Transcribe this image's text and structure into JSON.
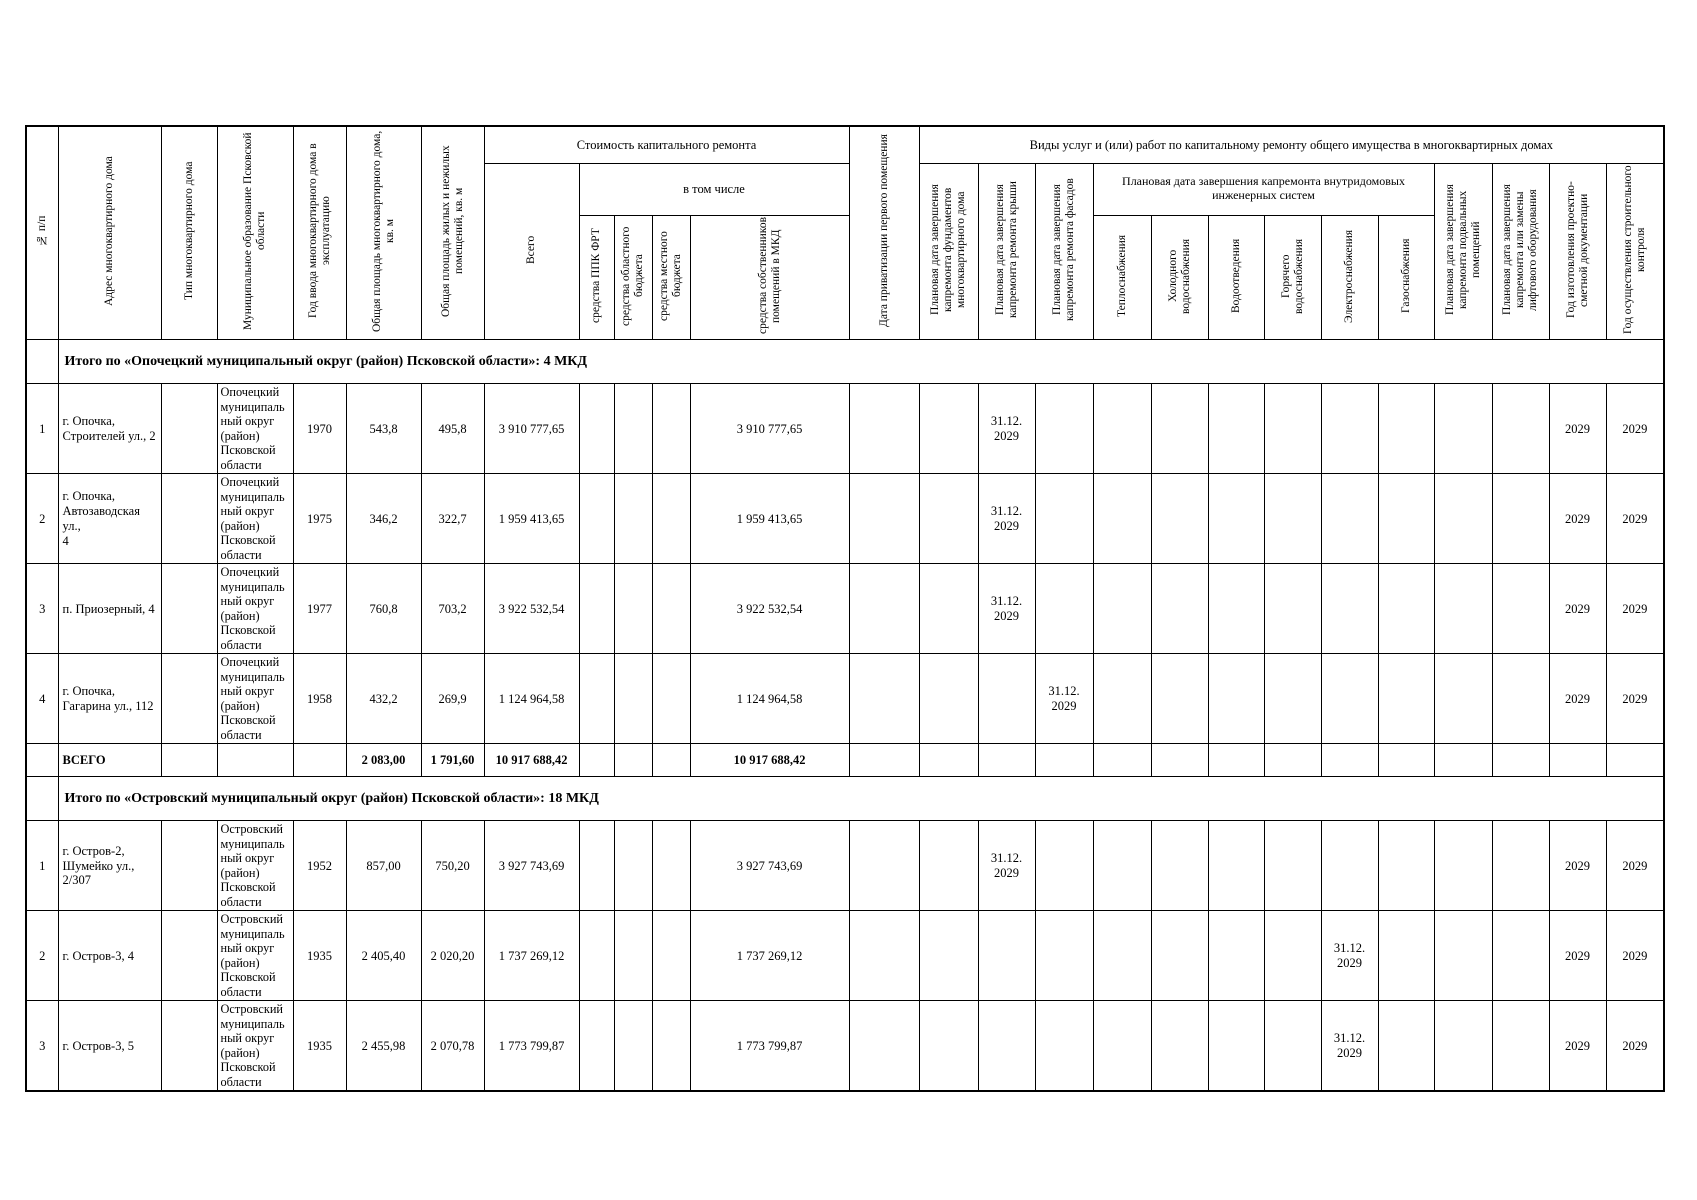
{
  "table": {
    "header": {
      "num": "№ п/п",
      "address": "Адрес многоквартирного дома",
      "type": "Тип многоквартирного дома",
      "municipality": "Муниципальное образование Псковской области",
      "year_commissioned": "Год ввода многоквартирного дома в эксплуатацию",
      "area_total": "Общая площадь многоквартирного дома, кв. м",
      "area_premises": "Общая площадь жилых и нежилых помещений, кв. м",
      "cost_group": "Стоимость капитального ремонта",
      "cost_total": "Всего",
      "including": "в том числе",
      "funds_frt": "средства ППК ФРТ",
      "funds_regional": "средства областного бюджета",
      "funds_local": "средства местного бюджета",
      "funds_owners": "средства собственников помещений в МКД",
      "privatization_date": "Дата приватизации первого помещения",
      "works_group": "Виды услуг и (или) работ по капитальному ремонту общего имущества в многоквартирных домах",
      "date_foundation": "Плановая дата завершения капремонта фундаментов многоквартирного дома",
      "date_roof": "Плановая дата завершения капремонта ремонта крыши",
      "date_facade": "Плановая дата завершения капремонта ремонта фасадов",
      "eng_group": "Плановая дата завершения капремонта внутридомовых инженерных систем",
      "heat": "Теплоснабжения",
      "cold_water": "Холодного водоснабжения",
      "sewerage": "Водоотведения",
      "hot_water": "Горячего водоснабжения",
      "electricity": "Электроснабжения",
      "gas": "Газоснабжения",
      "date_basement": "Плановая дата завершения капремонта подвальных помещений",
      "date_elevator": "Плановая дата завершения капремонта или замены лифтового оборудования",
      "psd_year": "Год изготовления проектно-сметной документации",
      "control_year": "Год осуществления строительного контроля"
    },
    "body": [
      {
        "type": "section",
        "title": "Итого по «Опочецкий муниципальный округ (район) Псковской области»: 4 МКД"
      },
      {
        "type": "row",
        "cells": [
          "1",
          "г. Опочка,\nСтроителей ул., 2",
          "",
          "Опочецкий\nмуниципаль\nный округ\n(район)\nПсковской\nобласти",
          "1970",
          "543,8",
          "495,8",
          "3 910 777,65",
          "",
          "",
          "",
          "3 910 777,65",
          "",
          "",
          "31.12.\n2029",
          "",
          "",
          "",
          "",
          "",
          "",
          "",
          "",
          "",
          "2029",
          "2029"
        ]
      },
      {
        "type": "row",
        "cells": [
          "2",
          "г. Опочка,\nАвтозаводская ул.,\n4",
          "",
          "Опочецкий\nмуниципаль\nный округ\n(район)\nПсковской\nобласти",
          "1975",
          "346,2",
          "322,7",
          "1 959 413,65",
          "",
          "",
          "",
          "1 959 413,65",
          "",
          "",
          "31.12.\n2029",
          "",
          "",
          "",
          "",
          "",
          "",
          "",
          "",
          "",
          "2029",
          "2029"
        ]
      },
      {
        "type": "row",
        "cells": [
          "3",
          "п. Приозерный, 4",
          "",
          "Опочецкий\nмуниципаль\nный округ\n(район)\nПсковской\nобласти",
          "1977",
          "760,8",
          "703,2",
          "3 922 532,54",
          "",
          "",
          "",
          "3 922 532,54",
          "",
          "",
          "31.12.\n2029",
          "",
          "",
          "",
          "",
          "",
          "",
          "",
          "",
          "",
          "2029",
          "2029"
        ]
      },
      {
        "type": "row",
        "cells": [
          "4",
          "г. Опочка,\nГагарина ул., 112",
          "",
          "Опочецкий\nмуниципаль\nный округ\n(район)\nПсковской\nобласти",
          "1958",
          "432,2",
          "269,9",
          "1 124 964,58",
          "",
          "",
          "",
          "1 124 964,58",
          "",
          "",
          "",
          "31.12.\n2029",
          "",
          "",
          "",
          "",
          "",
          "",
          "",
          "",
          "2029",
          "2029"
        ]
      },
      {
        "type": "total",
        "cells": [
          "",
          "ВСЕГО",
          "",
          "",
          "",
          "2 083,00",
          "1 791,60",
          "10 917 688,42",
          "",
          "",
          "",
          "10 917 688,42",
          "",
          "",
          "",
          "",
          "",
          "",
          "",
          "",
          "",
          "",
          "",
          "",
          "",
          ""
        ]
      },
      {
        "type": "section",
        "title": "Итого по «Островский муниципальный округ (район) Псковской области»: 18 МКД"
      },
      {
        "type": "row",
        "cells": [
          "1",
          "г. Остров-2,\nШумейко ул.,\n2/307",
          "",
          "Островский\nмуниципаль\nный округ\n(район)\nПсковской\nобласти",
          "1952",
          "857,00",
          "750,20",
          "3 927 743,69",
          "",
          "",
          "",
          "3 927 743,69",
          "",
          "",
          "31.12.\n2029",
          "",
          "",
          "",
          "",
          "",
          "",
          "",
          "",
          "",
          "2029",
          "2029"
        ]
      },
      {
        "type": "row",
        "cells": [
          "2",
          "г. Остров-3, 4",
          "",
          "Островский\nмуниципаль\nный округ\n(район)\nПсковской\nобласти",
          "1935",
          "2 405,40",
          "2 020,20",
          "1 737 269,12",
          "",
          "",
          "",
          "1 737 269,12",
          "",
          "",
          "",
          "",
          "",
          "",
          "",
          "",
          "31.12.\n2029",
          "",
          "",
          "",
          "2029",
          "2029"
        ]
      },
      {
        "type": "row",
        "cells": [
          "3",
          "г. Остров-3, 5",
          "",
          "Островский\nмуниципаль\nный округ\n(район)\nПсковской\nобласти",
          "1935",
          "2 455,98",
          "2 070,78",
          "1 773 799,87",
          "",
          "",
          "",
          "1 773 799,87",
          "",
          "",
          "",
          "",
          "",
          "",
          "",
          "",
          "31.12.\n2029",
          "",
          "",
          "",
          "2029",
          "2029"
        ]
      }
    ]
  }
}
